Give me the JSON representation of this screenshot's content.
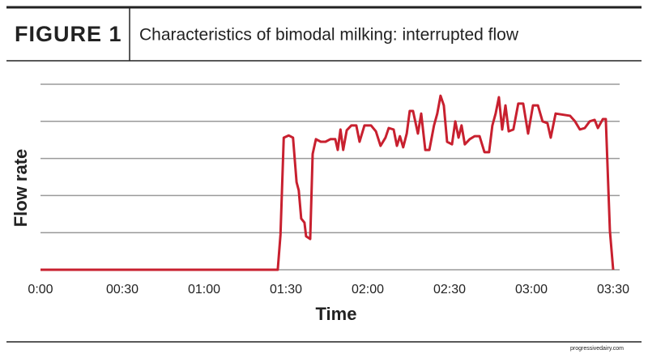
{
  "chart_data": {
    "type": "line",
    "figure_label": "FIGURE 1",
    "title": "Characteristics of bimodal milking: interrupted flow",
    "x_label": "Time",
    "y_label": "Flow rate",
    "source": "progressivedairy.com",
    "xlim": [
      0,
      210
    ],
    "xticks": [
      {
        "value": 0,
        "label": "0:00"
      },
      {
        "value": 30,
        "label": "00:30"
      },
      {
        "value": 60,
        "label": "01:00"
      },
      {
        "value": 90,
        "label": "01:30"
      },
      {
        "value": 120,
        "label": "02:00"
      },
      {
        "value": 150,
        "label": "02:30"
      },
      {
        "value": 180,
        "label": "03:00"
      },
      {
        "value": 210,
        "label": "03:30"
      }
    ],
    "ylim": [
      0,
      5
    ],
    "yticks": [
      0,
      1,
      2,
      3,
      4,
      5
    ],
    "grid": true,
    "x": [
      0,
      87,
      88,
      89.2,
      91,
      92.6,
      93.9,
      94.7,
      95.6,
      96.8,
      97.4,
      98.9,
      99.8,
      101,
      102.8,
      104.5,
      106.3,
      108.1,
      109,
      110,
      111,
      112.3,
      114,
      115.8,
      117,
      118.8,
      121.2,
      123,
      124.7,
      126.5,
      127.7,
      129.5,
      130.7,
      131.8,
      133,
      134.3,
      135.4,
      136.6,
      138.4,
      139.6,
      141.1,
      142.6,
      144.3,
      145.5,
      146.7,
      147.9,
      149.1,
      150.9,
      152.1,
      153.3,
      154.4,
      155.6,
      157.4,
      159.2,
      161,
      162.8,
      164.5,
      165.7,
      166.9,
      168.1,
      169.3,
      170.5,
      171.7,
      173.4,
      175.2,
      177,
      178.8,
      180.6,
      182.4,
      184.1,
      185.9,
      187.1,
      188.9,
      194.2,
      196,
      197.8,
      199.6,
      201.4,
      203.2,
      204.4,
      206.2,
      207.3,
      208.8,
      210
    ],
    "series": [
      {
        "color": "#c8202f",
        "values": [
          0,
          0,
          0.94,
          3.56,
          3.62,
          3.56,
          2.36,
          2.14,
          1.38,
          1.27,
          0.9,
          0.83,
          3.12,
          3.52,
          3.45,
          3.45,
          3.52,
          3.52,
          3.23,
          3.78,
          3.23,
          3.76,
          3.89,
          3.89,
          3.45,
          3.89,
          3.89,
          3.73,
          3.34,
          3.56,
          3.82,
          3.78,
          3.34,
          3.6,
          3.3,
          3.67,
          4.28,
          4.28,
          3.67,
          4.21,
          3.23,
          3.23,
          3.89,
          4.21,
          4.69,
          4.43,
          3.45,
          3.38,
          4.0,
          3.56,
          3.89,
          3.38,
          3.52,
          3.6,
          3.6,
          3.17,
          3.17,
          3.89,
          4.21,
          4.65,
          3.78,
          4.43,
          3.73,
          3.78,
          4.48,
          4.48,
          3.67,
          4.43,
          4.43,
          4.0,
          3.95,
          3.56,
          4.21,
          4.15,
          4.0,
          3.78,
          3.82,
          4.0,
          4.04,
          3.82,
          4.06,
          4.06,
          1.05,
          0
        ]
      }
    ]
  }
}
